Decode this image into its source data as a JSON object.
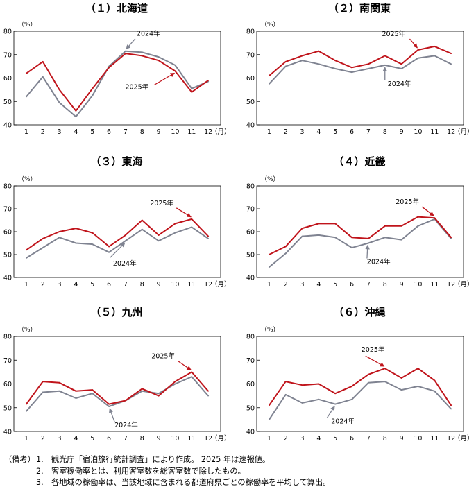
{
  "months": [
    "1",
    "2",
    "3",
    "4",
    "5",
    "6",
    "7",
    "8",
    "9",
    "10",
    "11",
    "12"
  ],
  "month_unit": "（月）",
  "y_unit": "（%）",
  "y_ticks": [
    "80",
    "70",
    "60",
    "50",
    "40"
  ],
  "colors": {
    "y2024": "#7f8391",
    "y2025": "#c0141b"
  },
  "chart_data": [
    {
      "type": "line",
      "title": "（１）北海道",
      "x": [
        1,
        2,
        3,
        4,
        5,
        6,
        7,
        8,
        9,
        10,
        11,
        12
      ],
      "ylim": [
        40,
        80
      ],
      "series": [
        {
          "name": "2024年",
          "values": [
            52.0,
            60.5,
            49.5,
            43.5,
            52.5,
            65.0,
            71.5,
            71.0,
            69.0,
            65.5,
            55.5,
            58.5
          ]
        },
        {
          "name": "2025年",
          "values": [
            62.0,
            67.0,
            55.0,
            46.0,
            55.5,
            64.5,
            70.5,
            69.5,
            67.5,
            63.0,
            54.0,
            59.0
          ]
        }
      ]
    },
    {
      "type": "line",
      "title": "（２）南関東",
      "x": [
        1,
        2,
        3,
        4,
        5,
        6,
        7,
        8,
        9,
        10,
        11,
        12
      ],
      "ylim": [
        40,
        80
      ],
      "series": [
        {
          "name": "2024年",
          "values": [
            57.5,
            65.0,
            67.5,
            66.0,
            64.0,
            62.5,
            64.0,
            65.5,
            64.0,
            68.5,
            69.5,
            66.0
          ]
        },
        {
          "name": "2025年",
          "values": [
            61.0,
            67.0,
            69.5,
            71.5,
            67.5,
            64.5,
            66.0,
            69.5,
            66.0,
            72.0,
            73.5,
            70.5
          ]
        }
      ]
    },
    {
      "type": "line",
      "title": "（３）東海",
      "x": [
        1,
        2,
        3,
        4,
        5,
        6,
        7,
        8,
        9,
        10,
        11,
        12
      ],
      "ylim": [
        40,
        80
      ],
      "series": [
        {
          "name": "2024年",
          "values": [
            48.5,
            53.0,
            57.5,
            55.0,
            54.5,
            51.0,
            56.0,
            61.0,
            56.0,
            59.5,
            62.0,
            57.0
          ]
        },
        {
          "name": "2025年",
          "values": [
            52.0,
            57.0,
            60.0,
            61.5,
            59.5,
            53.5,
            58.5,
            65.0,
            58.5,
            63.5,
            65.5,
            58.0
          ]
        }
      ]
    },
    {
      "type": "line",
      "title": "（４）近畿",
      "x": [
        1,
        2,
        3,
        4,
        5,
        6,
        7,
        8,
        9,
        10,
        11,
        12
      ],
      "ylim": [
        40,
        80
      ],
      "series": [
        {
          "name": "2024年",
          "values": [
            44.5,
            50.5,
            58.0,
            58.5,
            57.5,
            53.0,
            55.0,
            57.5,
            56.5,
            62.5,
            65.5,
            57.0
          ]
        },
        {
          "name": "2025年",
          "values": [
            50.0,
            53.5,
            61.5,
            63.5,
            63.5,
            57.5,
            57.0,
            62.5,
            62.5,
            66.5,
            66.0,
            57.5
          ]
        }
      ]
    },
    {
      "type": "line",
      "title": "（５）九州",
      "x": [
        1,
        2,
        3,
        4,
        5,
        6,
        7,
        8,
        9,
        10,
        11,
        12
      ],
      "ylim": [
        40,
        80
      ],
      "series": [
        {
          "name": "2024年",
          "values": [
            48.5,
            56.5,
            57.0,
            54.0,
            56.0,
            50.5,
            53.0,
            57.0,
            56.0,
            60.0,
            63.0,
            55.0
          ]
        },
        {
          "name": "2025年",
          "values": [
            51.5,
            61.0,
            60.5,
            57.0,
            57.5,
            51.5,
            53.0,
            58.0,
            55.0,
            61.0,
            65.0,
            57.0
          ]
        }
      ]
    },
    {
      "type": "line",
      "title": "（６）沖縄",
      "x": [
        1,
        2,
        3,
        4,
        5,
        6,
        7,
        8,
        9,
        10,
        11,
        12
      ],
      "ylim": [
        40,
        80
      ],
      "series": [
        {
          "name": "2024年",
          "values": [
            45.0,
            55.5,
            52.0,
            53.5,
            51.5,
            53.5,
            60.5,
            61.0,
            57.5,
            59.0,
            57.0,
            49.5
          ]
        },
        {
          "name": "2025年",
          "values": [
            51.0,
            61.0,
            59.5,
            60.0,
            56.0,
            59.0,
            64.0,
            66.5,
            62.5,
            66.5,
            61.5,
            51.0
          ]
        }
      ]
    }
  ],
  "notes": {
    "label": "（備考）",
    "items": [
      {
        "num": "1.",
        "text": "観光庁「宿泊旅行統計調査」により作成。 2025 年は速報値。"
      },
      {
        "num": "2.",
        "text": "客室稼働率とは、利用客室数を総客室数で除したもの。"
      },
      {
        "num": "3.",
        "text": "各地域の稼働率は、当該地域に含まれる都道府県ごとの稼働率を平均して算出。"
      }
    ]
  }
}
